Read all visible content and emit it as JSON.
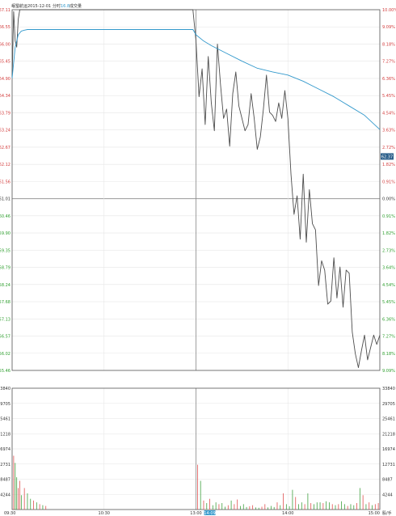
{
  "header": {
    "stock_name": "岷蜀航运",
    "date": "2015-12-01",
    "time_label": "分时",
    "price_readout": "16.8",
    "volume_readout": "成交量"
  },
  "colors": {
    "price_line": "#4d4d4d",
    "avg_line": "#3399cc",
    "up_text": "#d23c3c",
    "down_text": "#2e9e2e",
    "neutral_text": "#333333",
    "grid": "#e6e6e6",
    "frame": "#555555",
    "vol_up": "#e05050",
    "vol_down": "#40a040"
  },
  "chart_data": {
    "type": "line",
    "title": "",
    "x_ticks": [
      "09:30",
      "10:30",
      "13:00",
      "14:00",
      "15:00"
    ],
    "x_highlight_label": "14:09",
    "price_axis_label_right": "62.37",
    "volume_axis_unit": "股/手",
    "left_price_ticks": [
      "67.11",
      "66.55",
      "66.00",
      "65.45",
      "64.90",
      "64.34",
      "63.79",
      "63.24",
      "62.67",
      "62.12",
      "61.56",
      "61.01",
      "60.46",
      "59.90",
      "59.35",
      "58.79",
      "58.24",
      "57.68",
      "57.13",
      "56.57",
      "56.02",
      "55.46"
    ],
    "right_pct_ticks": [
      "10.00%",
      "9.09%",
      "8.18%",
      "7.27%",
      "6.36%",
      "5.45%",
      "4.54%",
      "3.63%",
      "2.72%",
      "1.82%",
      "0.91%",
      "0.00%",
      "0.91%",
      "1.82%",
      "2.73%",
      "3.64%",
      "4.54%",
      "5.45%",
      "6.36%",
      "7.27%",
      "8.18%",
      "9.09%"
    ],
    "left_vol_ticks": [
      "33840",
      "29705",
      "25461",
      "21218",
      "16974",
      "12731",
      "8487",
      "4244"
    ],
    "right_vol_ticks": [
      "33840",
      "29705",
      "25461",
      "21218",
      "16974",
      "12731",
      "8487",
      "4244"
    ],
    "price_range": [
      55.46,
      67.11
    ],
    "prev_close": 61.01,
    "volume_range": [
      0,
      33840
    ],
    "series": [
      {
        "key": "price",
        "minutes": [
          0,
          1,
          2,
          3,
          4,
          5,
          6,
          8,
          10,
          15,
          30,
          60,
          90,
          118,
          120,
          122,
          124,
          126,
          128,
          130,
          132,
          134,
          136,
          138,
          140,
          142,
          144,
          146,
          148,
          150,
          152,
          154,
          156,
          158,
          160,
          162,
          164,
          166,
          168,
          170,
          172,
          174,
          176,
          178,
          180,
          182,
          184,
          186,
          188,
          190,
          192,
          194,
          196,
          198,
          200,
          202,
          204,
          206,
          208,
          210,
          212,
          214,
          216,
          218,
          220,
          222,
          224,
          226,
          228,
          230,
          232,
          234,
          236,
          238,
          240
        ],
        "values": [
          64.9,
          67.05,
          66.1,
          65.9,
          66.8,
          67.11,
          67.11,
          67.11,
          67.11,
          67.11,
          67.11,
          67.11,
          67.11,
          67.11,
          66.1,
          64.3,
          65.2,
          63.4,
          65.6,
          64.1,
          63.2,
          66.0,
          64.7,
          63.6,
          63.9,
          62.7,
          64.4,
          65.1,
          64.0,
          63.6,
          63.2,
          63.4,
          64.4,
          63.6,
          62.6,
          63.0,
          63.9,
          65.0,
          63.8,
          63.7,
          63.5,
          64.1,
          63.6,
          64.5,
          63.6,
          61.8,
          60.5,
          61.1,
          59.7,
          61.8,
          59.6,
          61.3,
          60.2,
          60.0,
          58.2,
          59.0,
          58.7,
          57.6,
          57.7,
          59.1,
          57.8,
          58.8,
          57.5,
          58.7,
          58.6,
          56.7,
          56.0,
          55.55,
          56.1,
          56.6,
          55.8,
          56.2,
          56.6,
          56.3,
          56.6
        ]
      },
      {
        "key": "average",
        "minutes": [
          0,
          2,
          4,
          6,
          8,
          10,
          15,
          30,
          60,
          90,
          118,
          120,
          125,
          130,
          140,
          150,
          160,
          170,
          180,
          190,
          200,
          210,
          220,
          230,
          240
        ],
        "values": [
          64.9,
          65.9,
          66.3,
          66.42,
          66.45,
          66.47,
          66.47,
          66.47,
          66.47,
          66.47,
          66.47,
          66.3,
          66.1,
          65.95,
          65.7,
          65.45,
          65.22,
          65.1,
          65.0,
          64.8,
          64.55,
          64.3,
          64.0,
          63.7,
          63.24
        ]
      }
    ],
    "volume": {
      "minutes": [
        1,
        2,
        3,
        4,
        5,
        6,
        8,
        10,
        12,
        14,
        16,
        18,
        20,
        22,
        121,
        123,
        125,
        127,
        129,
        131,
        133,
        135,
        137,
        139,
        141,
        143,
        145,
        147,
        149,
        151,
        153,
        155,
        157,
        159,
        161,
        163,
        165,
        167,
        169,
        171,
        173,
        175,
        177,
        179,
        181,
        183,
        185,
        187,
        189,
        191,
        193,
        195,
        197,
        199,
        201,
        203,
        205,
        207,
        209,
        211,
        213,
        215,
        217,
        219,
        221,
        223,
        225,
        227,
        229,
        231,
        233,
        235,
        237,
        239
      ],
      "values": [
        15000,
        13000,
        9000,
        6000,
        8000,
        4000,
        6000,
        4500,
        3000,
        2500,
        2000,
        1500,
        1200,
        1000,
        12500,
        8000,
        2500,
        1800,
        3000,
        1200,
        2000,
        1500,
        1800,
        800,
        1200,
        2500,
        1500,
        2800,
        1000,
        1500,
        700,
        900,
        1200,
        600,
        500,
        800,
        1500,
        600,
        1000,
        700,
        2000,
        1200,
        4500,
        1500,
        900,
        5500,
        3500,
        1500,
        2000,
        1500,
        4500,
        1800,
        1500,
        2000,
        2000,
        1800,
        2300,
        2000,
        1500,
        1200,
        1500,
        2300,
        1500,
        1000,
        1500,
        1200,
        1800,
        6000,
        4000,
        1500,
        2000,
        1200,
        1500,
        1800
      ],
      "up": [
        true,
        false,
        false,
        true,
        true,
        false,
        true,
        false,
        false,
        true,
        false,
        true,
        false,
        true,
        true,
        false,
        true,
        false,
        true,
        false,
        false,
        true,
        false,
        false,
        true,
        false,
        true,
        true,
        false,
        false,
        false,
        true,
        true,
        false,
        false,
        true,
        true,
        false,
        false,
        false,
        true,
        false,
        true,
        false,
        false,
        false,
        true,
        false,
        false,
        true,
        false,
        true,
        false,
        false,
        false,
        true,
        false,
        false,
        true,
        false,
        true,
        false,
        false,
        true,
        false,
        false,
        true,
        false,
        true,
        false,
        true,
        false,
        true,
        true
      ]
    }
  }
}
